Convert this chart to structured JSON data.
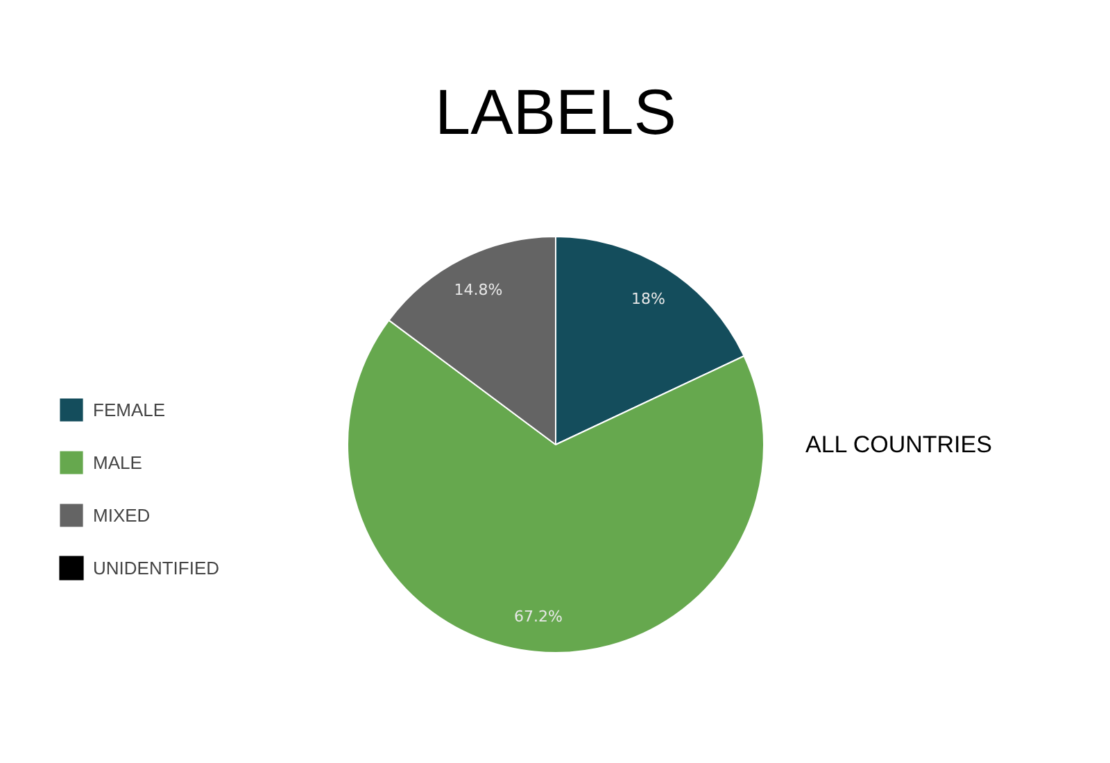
{
  "chart_data": {
    "type": "pie",
    "title": "LABELS",
    "categories": [
      "FEMALE",
      "MALE",
      "MIXED",
      "UNIDENTIFIED"
    ],
    "values": [
      18,
      67.2,
      14.8,
      0
    ],
    "colors": [
      "#144d5c",
      "#66a84e",
      "#646464",
      "#000000"
    ],
    "value_labels": [
      "18%",
      "67.2%",
      "14.8%",
      null
    ],
    "legend": "left",
    "annotations": [
      "ALL COUNTRIES"
    ]
  }
}
